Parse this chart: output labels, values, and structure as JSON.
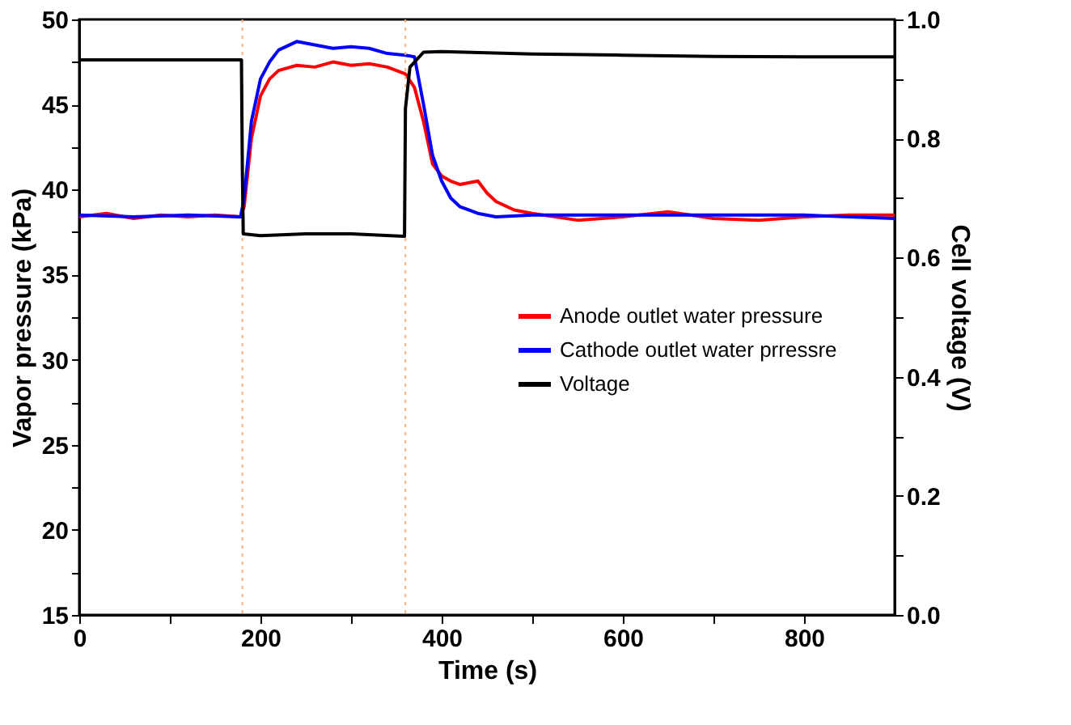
{
  "chart_data": {
    "type": "line",
    "xlabel": "Time (s)",
    "ylabel": "Vapor pressure (kPa)",
    "y2label": "Cell voltage (V)",
    "xlim": [
      0,
      900
    ],
    "xticks": [
      0,
      {
        "value": 100,
        "label": null
      },
      200,
      {
        "value": 300,
        "label": null
      },
      400,
      {
        "value": 500,
        "label": null
      },
      600,
      {
        "value": 700,
        "label": null
      },
      800
    ],
    "ylim": [
      15,
      50
    ],
    "yticks": [
      15,
      {
        "value": 17.5,
        "label": null
      },
      20,
      {
        "value": 22.5,
        "label": null
      },
      25,
      {
        "value": 27.5,
        "label": null
      },
      30,
      {
        "value": 32.5,
        "label": null
      },
      35,
      {
        "value": 37.5,
        "label": null
      },
      40,
      {
        "value": 42.5,
        "label": null
      },
      45,
      {
        "value": 47.5,
        "label": null
      },
      50
    ],
    "y2lim": [
      0,
      1.0
    ],
    "y2ticks": [
      {
        "value": 0,
        "label": "0.0"
      },
      {
        "value": 0.1,
        "label": null
      },
      0.2,
      {
        "value": 0.3,
        "label": null
      },
      0.4,
      {
        "value": 0.5,
        "label": null
      },
      0.6,
      {
        "value": 0.7,
        "label": null
      },
      0.8,
      {
        "value": 0.9,
        "label": null
      },
      {
        "value": 1.0,
        "label": "1.0"
      }
    ],
    "grid": false,
    "legend": "right",
    "marker": "none",
    "line_style": "solid",
    "ref_lines": [
      {
        "axis": "x",
        "value": 180,
        "color": "#f4b183",
        "line_style": "dotted"
      },
      {
        "axis": "x",
        "value": 360,
        "color": "#f4b183",
        "line_style": "dotted"
      }
    ],
    "series": [
      {
        "name": "Anode outlet water pressure",
        "color": "#ff0000",
        "x": [
          0,
          30,
          60,
          90,
          120,
          150,
          178,
          182,
          190,
          200,
          210,
          220,
          240,
          260,
          280,
          300,
          320,
          340,
          360,
          370,
          380,
          390,
          400,
          410,
          420,
          440,
          450,
          460,
          480,
          500,
          550,
          600,
          650,
          700,
          750,
          800,
          850,
          900
        ],
        "values": [
          38.4,
          38.6,
          38.3,
          38.5,
          38.4,
          38.5,
          38.4,
          39,
          43,
          45.5,
          46.5,
          47,
          47.3,
          47.2,
          47.5,
          47.3,
          47.4,
          47.2,
          46.8,
          46,
          44,
          41.5,
          40.8,
          40.5,
          40.3,
          40.5,
          39.8,
          39.3,
          38.8,
          38.6,
          38.2,
          38.4,
          38.7,
          38.3,
          38.2,
          38.4,
          38.5,
          38.5
        ]
      },
      {
        "name": "Cathode outlet water prressre",
        "color": "#0000ff",
        "x": [
          0,
          60,
          120,
          178,
          182,
          190,
          200,
          210,
          220,
          240,
          260,
          280,
          300,
          320,
          340,
          360,
          370,
          380,
          390,
          400,
          410,
          420,
          440,
          460,
          500,
          600,
          700,
          800,
          900
        ],
        "values": [
          38.5,
          38.4,
          38.5,
          38.4,
          39.5,
          44,
          46.5,
          47.5,
          48.2,
          48.7,
          48.5,
          48.3,
          48.4,
          48.3,
          48,
          47.9,
          47.8,
          45,
          42,
          40.5,
          39.5,
          39,
          38.6,
          38.4,
          38.5,
          38.5,
          38.5,
          38.5,
          38.3
        ]
      },
      {
        "name": "Voltage",
        "color": "#000000",
        "axis": "y2",
        "x": [
          0,
          179,
          180,
          181,
          200,
          250,
          300,
          358,
          359,
          360,
          365,
          380,
          400,
          500,
          600,
          700,
          800,
          900
        ],
        "values": [
          0.932,
          0.932,
          0.75,
          0.64,
          0.637,
          0.64,
          0.64,
          0.636,
          0.636,
          0.85,
          0.92,
          0.945,
          0.946,
          0.942,
          0.94,
          0.938,
          0.937,
          0.937
        ]
      }
    ]
  }
}
